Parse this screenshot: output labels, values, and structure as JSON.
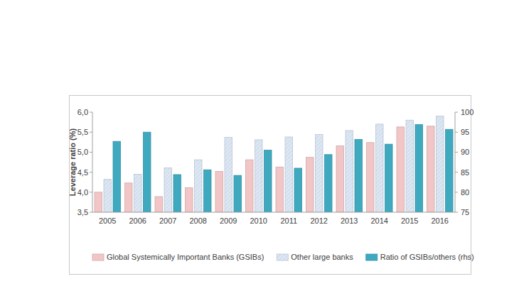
{
  "chart_data": {
    "type": "bar",
    "y_label": "Leverage ratio (%)",
    "categories": [
      "2005",
      "2006",
      "2007",
      "2008",
      "2009",
      "2010",
      "2011",
      "2012",
      "2013",
      "2014",
      "2015",
      "2016"
    ],
    "series": [
      {
        "name": "Global Systemically Important Banks (GSIBs)",
        "color": "#f2c6c6",
        "values": [
          4.0,
          4.23,
          3.89,
          4.11,
          4.52,
          4.81,
          4.63,
          4.87,
          5.16,
          5.24,
          5.63,
          5.65
        ]
      },
      {
        "name": "Other large banks",
        "color": "#dde7f3",
        "values": [
          4.32,
          4.45,
          4.61,
          4.81,
          5.37,
          5.31,
          5.38,
          5.44,
          5.54,
          5.7,
          5.8,
          5.9
        ]
      },
      {
        "name": "Ratio of GSIBs/others (rhs)",
        "color": "#3fa9c0",
        "axis": "y2",
        "values": [
          92.7,
          95.0,
          84.4,
          85.6,
          84.2,
          90.5,
          86.0,
          89.4,
          93.2,
          92.0,
          96.9,
          95.7
        ]
      }
    ],
    "ylim": [
      3.5,
      6.0
    ],
    "yticks": [
      {
        "value": 3.5,
        "label": "3,5"
      },
      {
        "value": 4.0,
        "label": "4,0"
      },
      {
        "value": 4.5,
        "label": "4,5"
      },
      {
        "value": 5.0,
        "label": "5,0"
      },
      {
        "value": 5.5,
        "label": "5,5"
      },
      {
        "value": 6.0,
        "label": "6,0"
      }
    ],
    "y2lim": [
      75,
      100
    ],
    "y2ticks": [
      75,
      80,
      85,
      90,
      95,
      100
    ],
    "grid": false,
    "legend": "bottom"
  }
}
